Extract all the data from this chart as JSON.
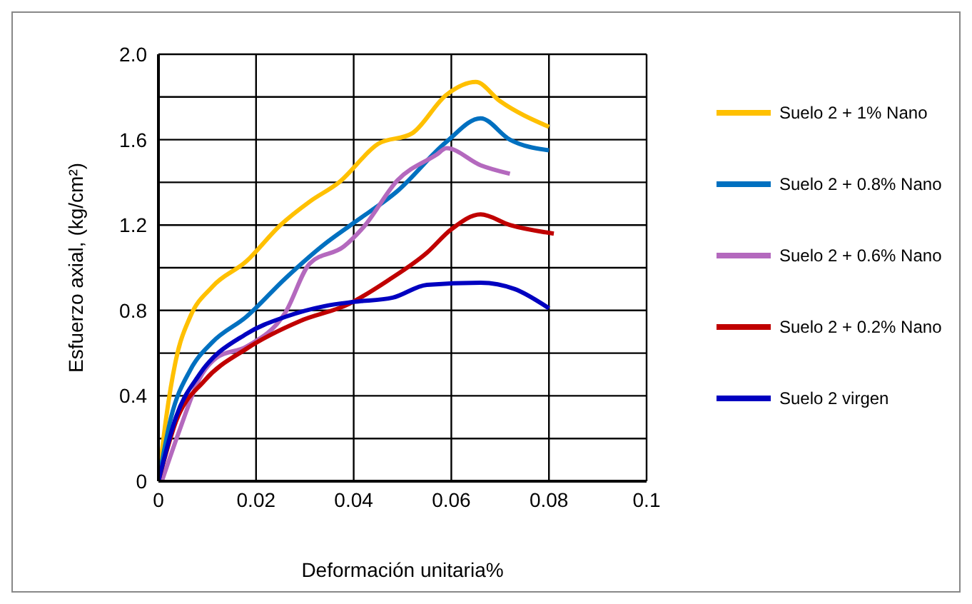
{
  "chart_data": {
    "type": "line",
    "xlabel": "Deformación unitaria%",
    "ylabel": "Esfuerzo axial,   (kg/cm²)",
    "xlim": [
      0,
      0.1
    ],
    "xticks": [
      0,
      0.02,
      0.04,
      0.06,
      0.08,
      0.1
    ],
    "ylim": [
      0,
      2
    ],
    "yticks": [
      0,
      {
        "value": 0.2,
        "label": null
      },
      0.4,
      {
        "value": 0.6,
        "label": null
      },
      0.8,
      {
        "value": 1.0,
        "label": null
      },
      1.2,
      {
        "value": 1.4,
        "label": null
      },
      1.6,
      {
        "value": 1.8,
        "label": null
      },
      {
        "value": 2,
        "label": "2.0"
      }
    ],
    "grid": true,
    "legend": "right",
    "marker": "none",
    "line_style": "solid",
    "series": [
      {
        "name": "Suelo 2 + 1% Nano",
        "color": "#ffc000",
        "x": [
          0,
          0.0016,
          0.0036,
          0.0065,
          0.011,
          0.018,
          0.025,
          0.031,
          0.037,
          0.045,
          0.052,
          0.059,
          0.065,
          0.07,
          0.08
        ],
        "values": [
          0,
          0.3,
          0.57,
          0.77,
          0.91,
          1.03,
          1.2,
          1.31,
          1.4,
          1.58,
          1.63,
          1.81,
          1.87,
          1.78,
          1.66
        ]
      },
      {
        "name": "Suelo 2 + 0.8% Nano",
        "color": "#0070c0",
        "x": [
          0,
          0.0026,
          0.0065,
          0.011,
          0.018,
          0.026,
          0.034,
          0.04,
          0.049,
          0.059,
          0.066,
          0.072,
          0.08
        ],
        "values": [
          0,
          0.3,
          0.52,
          0.65,
          0.77,
          0.95,
          1.11,
          1.21,
          1.36,
          1.59,
          1.7,
          1.6,
          1.55
        ]
      },
      {
        "name": "Suelo 2 + 0.6% Nano",
        "color": "#b469be",
        "x": [
          0.0007,
          0.0045,
          0.0084,
          0.012,
          0.018,
          0.026,
          0.031,
          0.038,
          0.042,
          0.049,
          0.057,
          0.059,
          0.066,
          0.072
        ],
        "values": [
          0,
          0.25,
          0.48,
          0.58,
          0.63,
          0.79,
          1.02,
          1.1,
          1.19,
          1.41,
          1.53,
          1.56,
          1.48,
          1.44
        ]
      },
      {
        "name": "Suelo 2 + 0.2% Nano",
        "color": "#c00000",
        "x": [
          0,
          0.0036,
          0.0094,
          0.018,
          0.029,
          0.039,
          0.047,
          0.055,
          0.06,
          0.066,
          0.072,
          0.081
        ],
        "values": [
          0,
          0.28,
          0.47,
          0.62,
          0.75,
          0.83,
          0.94,
          1.07,
          1.18,
          1.25,
          1.2,
          1.16
        ]
      },
      {
        "name": "Suelo 2 virgen",
        "color": "#0000c0",
        "x": [
          0,
          0.0036,
          0.0084,
          0.018,
          0.026,
          0.034,
          0.04,
          0.048,
          0.055,
          0.066,
          0.073,
          0.08
        ],
        "values": [
          0,
          0.3,
          0.5,
          0.69,
          0.77,
          0.82,
          0.84,
          0.86,
          0.92,
          0.93,
          0.9,
          0.81
        ]
      }
    ]
  }
}
